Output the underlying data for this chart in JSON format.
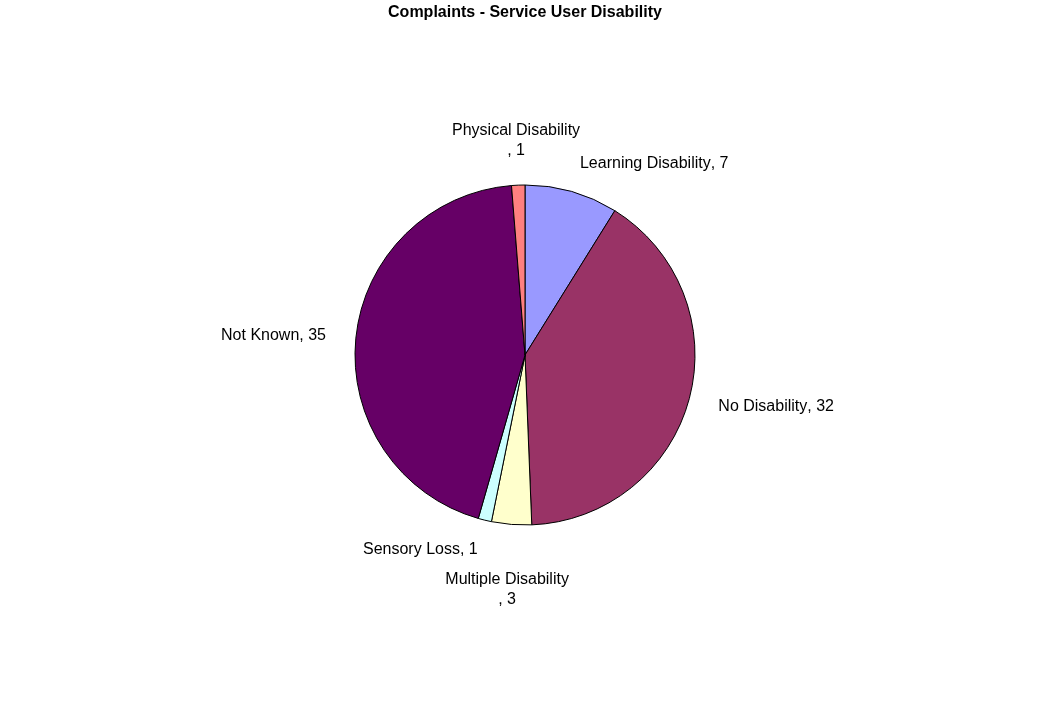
{
  "chart_data": {
    "type": "pie",
    "title": "Complaints - Service User Disability",
    "categories": [
      "Learning Disability",
      "No Disability",
      "Multiple Disability",
      "Sensory Loss",
      "Not Known",
      "Physical Disability"
    ],
    "values": [
      7,
      32,
      3,
      1,
      35,
      1
    ],
    "colors": [
      "#9999ff",
      "#993366",
      "#ffffcc",
      "#ccffff",
      "#660066",
      "#ff8080"
    ],
    "value_labels": [
      ", 7",
      ", 32",
      ", 3",
      ", 1",
      ", 35",
      ", 1"
    ],
    "legend": false
  }
}
